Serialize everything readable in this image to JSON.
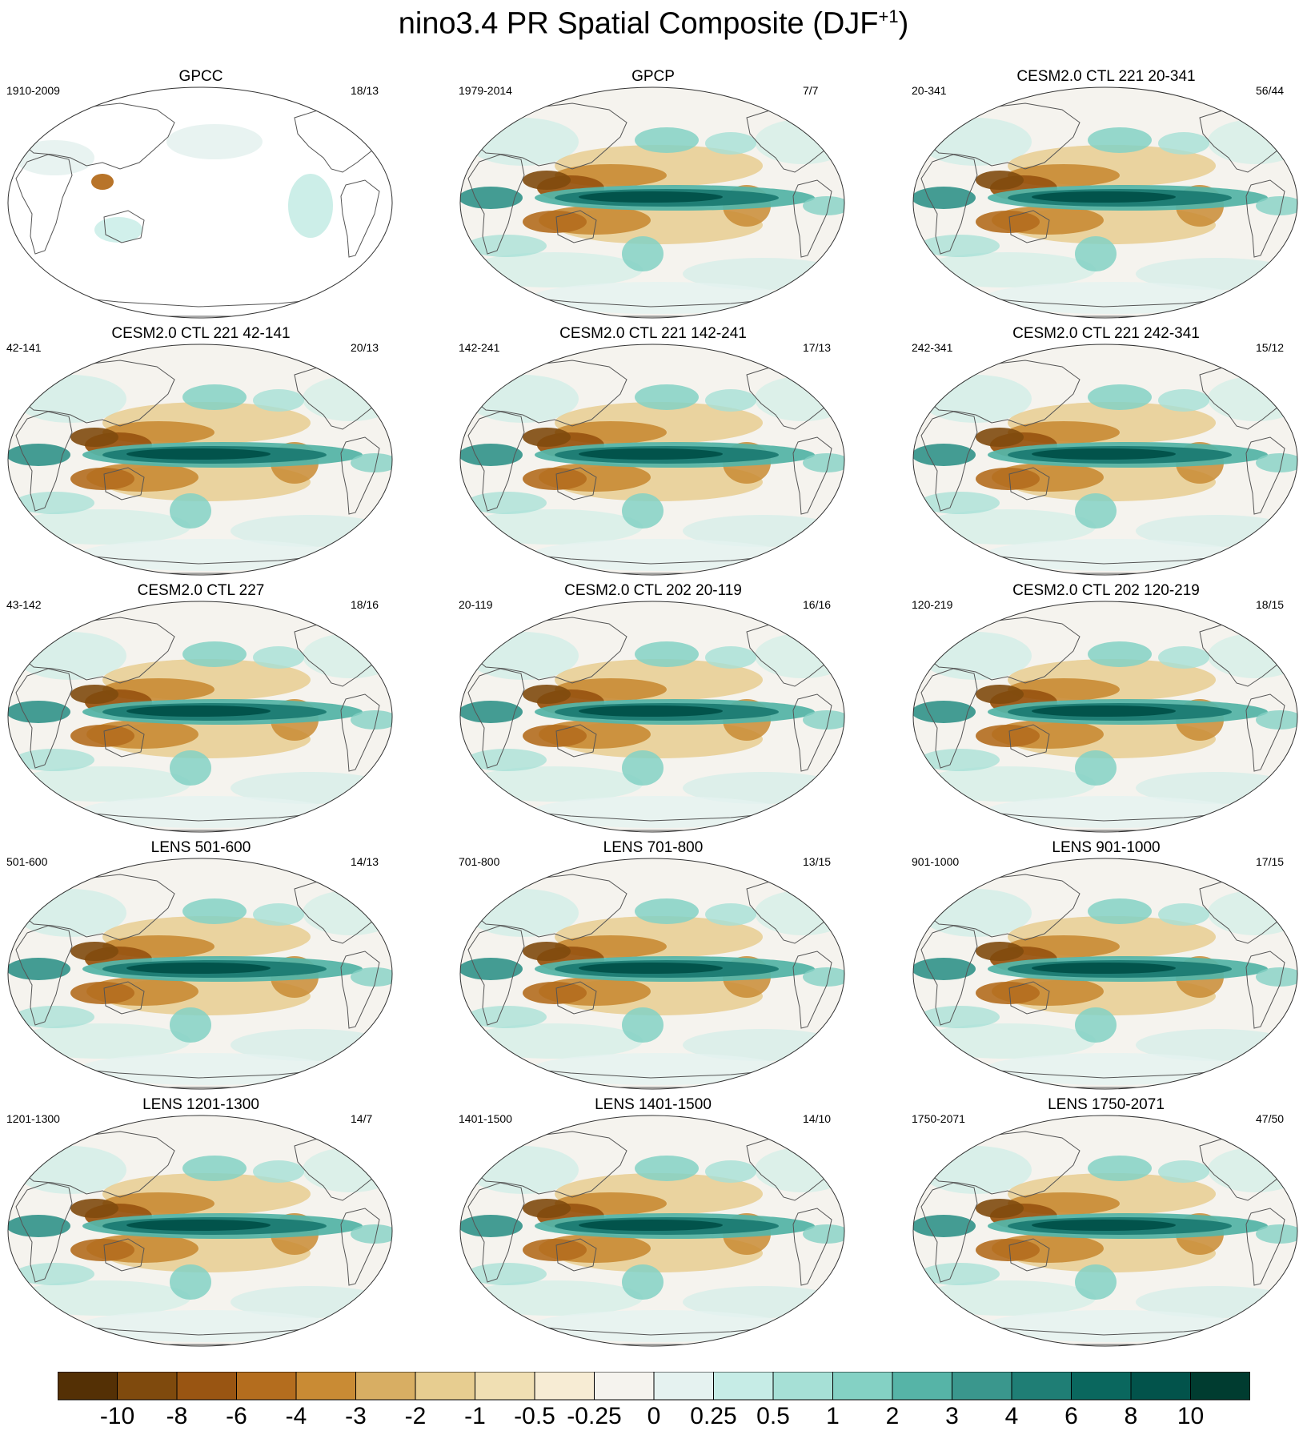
{
  "title_main": "nino3.4 PR Spatial Composite (DJF",
  "title_sup": "+1",
  "title_close": ")",
  "panels": [
    {
      "title": "GPCC",
      "period": "1910-2009",
      "counts": "18/13",
      "land_only": true
    },
    {
      "title": "GPCP",
      "period": "1979-2014",
      "counts": "7/7",
      "land_only": false
    },
    {
      "title": "CESM2.0 CTL 221 20-341",
      "period": "20-341",
      "counts": "56/44",
      "land_only": false
    },
    {
      "title": "CESM2.0 CTL 221 42-141",
      "period": "42-141",
      "counts": "20/13",
      "land_only": false
    },
    {
      "title": "CESM2.0 CTL 221 142-241",
      "period": "142-241",
      "counts": "17/13",
      "land_only": false
    },
    {
      "title": "CESM2.0 CTL 221 242-341",
      "period": "242-341",
      "counts": "15/12",
      "land_only": false
    },
    {
      "title": "CESM2.0 CTL 227",
      "period": "43-142",
      "counts": "18/16",
      "land_only": false
    },
    {
      "title": "CESM2.0 CTL 202 20-119",
      "period": "20-119",
      "counts": "16/16",
      "land_only": false
    },
    {
      "title": "CESM2.0 CTL 202 120-219",
      "period": "120-219",
      "counts": "18/15",
      "land_only": false
    },
    {
      "title": "LENS 501-600",
      "period": "501-600",
      "counts": "14/13",
      "land_only": false
    },
    {
      "title": "LENS 701-800",
      "period": "701-800",
      "counts": "13/15",
      "land_only": false
    },
    {
      "title": "LENS 901-1000",
      "period": "901-1000",
      "counts": "17/15",
      "land_only": false
    },
    {
      "title": "LENS 1201-1300",
      "period": "1201-1300",
      "counts": "14/7",
      "land_only": false
    },
    {
      "title": "LENS 1401-1500",
      "period": "1401-1500",
      "counts": "14/10",
      "land_only": false
    },
    {
      "title": "LENS 1750-2071",
      "period": "1750-2071",
      "counts": "47/50",
      "land_only": false
    }
  ],
  "colorbar": {
    "colors": [
      "#543005",
      "#7f4a0d",
      "#995512",
      "#b46d1e",
      "#c98b34",
      "#d8ae63",
      "#e7cd90",
      "#f0dfb3",
      "#f7ecd4",
      "#f5f3ee",
      "#e5f2f0",
      "#c6ece6",
      "#a6e0d6",
      "#84d1c4",
      "#56b4a7",
      "#3a978d",
      "#1f7e75",
      "#0a675e",
      "#02534b",
      "#003c30"
    ],
    "labels": [
      "-10",
      "-8",
      "-6",
      "-4",
      "-3",
      "-2",
      "-1",
      "-0.5",
      "-0.25",
      "0",
      "0.25",
      "0.5",
      "1",
      "2",
      "3",
      "4",
      "6",
      "8",
      "10"
    ]
  }
}
